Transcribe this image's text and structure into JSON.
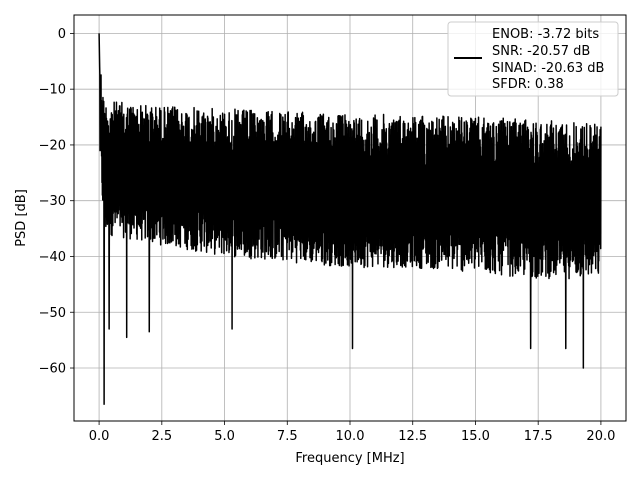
{
  "chart_data": {
    "type": "line",
    "title": "",
    "xlabel": "Frequency [MHz]",
    "ylabel": "PSD [dB]",
    "xlim": [
      -1.0,
      21.0
    ],
    "ylim": [
      -69.5,
      3.3
    ],
    "xticks": [
      0.0,
      2.5,
      5.0,
      7.5,
      10.0,
      12.5,
      15.0,
      17.5,
      20.0
    ],
    "xtick_labels": [
      "0.0",
      "2.5",
      "5.0",
      "7.5",
      "10.0",
      "12.5",
      "15.0",
      "17.5",
      "20.0"
    ],
    "yticks": [
      0,
      -10,
      -20,
      -30,
      -40,
      -50,
      -60
    ],
    "ytick_labels": [
      "0",
      "−10",
      "−20",
      "−30",
      "−40",
      "−50",
      "−60"
    ],
    "grid": true,
    "legend": {
      "placement": "top-right",
      "entries": [
        "ENOB: -3.72 bits",
        "SNR: -20.57 dB",
        "SINAD: -20.63 dB",
        "SFDR: 0.38"
      ]
    },
    "series": [
      {
        "color": "#000000",
        "x_range": [
          0.0,
          20.0
        ],
        "approx_upper_envelope_db": {
          "x": [
            0.0,
            0.05,
            0.2,
            2.5,
            5.0,
            7.5,
            10.0,
            12.5,
            15.0,
            17.5,
            20.0
          ],
          "y": [
            0.0,
            -5.0,
            -12.0,
            -13.0,
            -13.5,
            -14.0,
            -14.5,
            -14.5,
            -15.0,
            -15.5,
            -16.0
          ]
        },
        "approx_lower_envelope_db": {
          "x": [
            0.0,
            0.2,
            2.5,
            5.0,
            7.5,
            10.0,
            12.5,
            15.0,
            17.5,
            20.0
          ],
          "y": [
            -20.0,
            -36.0,
            -38.0,
            -40.0,
            -41.0,
            -42.0,
            -42.0,
            -43.0,
            -44.0,
            -44.0
          ]
        },
        "notable_minima": [
          {
            "x": 0.2,
            "y": -66.5
          },
          {
            "x": 0.4,
            "y": -53.0
          },
          {
            "x": 1.1,
            "y": -54.5
          },
          {
            "x": 2.0,
            "y": -53.5
          },
          {
            "x": 5.3,
            "y": -53.0
          },
          {
            "x": 10.1,
            "y": -56.5
          },
          {
            "x": 17.2,
            "y": -56.5
          },
          {
            "x": 18.6,
            "y": -56.5
          },
          {
            "x": 19.3,
            "y": -60.0
          }
        ]
      }
    ]
  }
}
